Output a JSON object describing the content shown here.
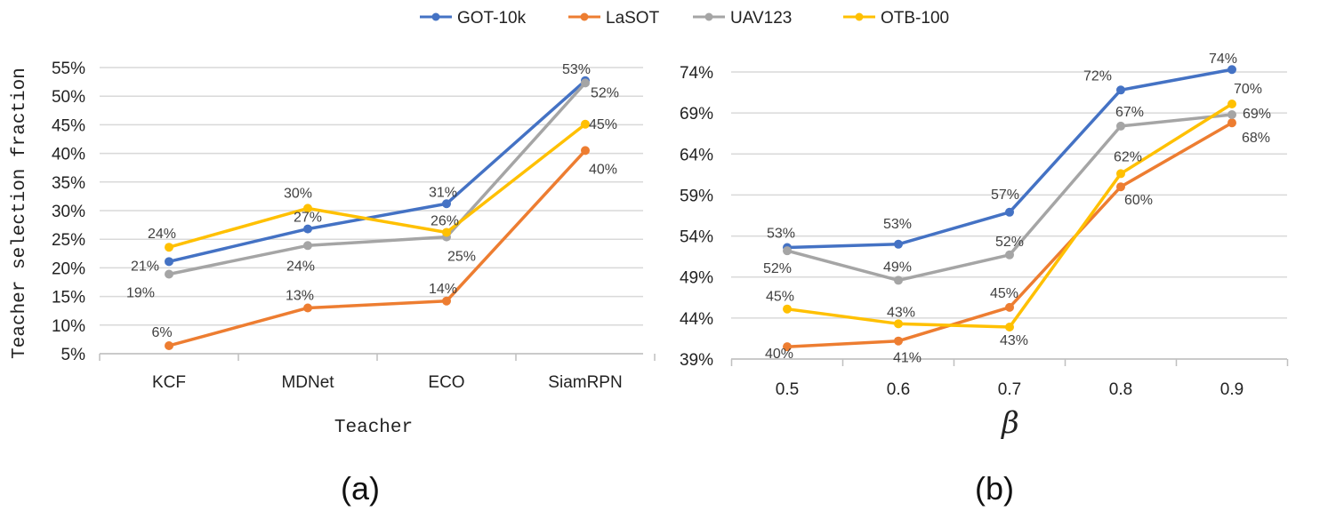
{
  "legend": [
    {
      "name": "GOT-10k",
      "color": "#4472C4"
    },
    {
      "name": "LaSOT",
      "color": "#ED7D31"
    },
    {
      "name": "UAV123",
      "color": "#A5A5A5"
    },
    {
      "name": "OTB-100",
      "color": "#FFC000"
    }
  ],
  "chart_data": [
    {
      "type": "line",
      "caption": "(a)",
      "xlabel": "Teacher",
      "ylabel": "Teacher selection fraction",
      "categories": [
        "KCF",
        "MDNet",
        "ECO",
        "SiamRPN"
      ],
      "ylim": [
        5,
        55
      ],
      "yticks": [
        5,
        10,
        15,
        20,
        25,
        30,
        35,
        40,
        45,
        50,
        55
      ],
      "ytick_labels": [
        "5%",
        "10%",
        "15%",
        "20%",
        "25%",
        "30%",
        "35%",
        "40%",
        "45%",
        "50%",
        "55%"
      ],
      "grid": true,
      "series": [
        {
          "name": "GOT-10k",
          "color": "#4472C4",
          "values": [
            21.1,
            26.8,
            31.2,
            52.7
          ],
          "labels": [
            "21%",
            "27%",
            "31%",
            "53%"
          ]
        },
        {
          "name": "LaSOT",
          "color": "#ED7D31",
          "values": [
            6.4,
            13.0,
            14.2,
            40.5
          ],
          "labels": [
            "6%",
            "13%",
            "14%",
            "40%"
          ]
        },
        {
          "name": "UAV123",
          "color": "#A5A5A5",
          "values": [
            18.9,
            23.9,
            25.4,
            52.3
          ],
          "labels": [
            "19%",
            "24%",
            "25%",
            "52%"
          ]
        },
        {
          "name": "OTB-100",
          "color": "#FFC000",
          "values": [
            23.6,
            30.4,
            26.2,
            45.1
          ],
          "labels": [
            "24%",
            "30%",
            "26%",
            "45%"
          ]
        }
      ]
    },
    {
      "type": "line",
      "caption": "(b)",
      "xlabel": "β",
      "ylabel": "",
      "categories": [
        "0.5",
        "0.6",
        "0.7",
        "0.8",
        "0.9"
      ],
      "ylim": [
        39,
        74
      ],
      "yticks": [
        39,
        44,
        49,
        54,
        59,
        64,
        69,
        74
      ],
      "ytick_labels": [
        "39%",
        "44%",
        "49%",
        "54%",
        "59%",
        "64%",
        "69%",
        "74%"
      ],
      "grid": true,
      "series": [
        {
          "name": "GOT-10k",
          "color": "#4472C4",
          "values": [
            52.6,
            53.0,
            56.9,
            71.8,
            74.3
          ],
          "labels": [
            "53%",
            "53%",
            "57%",
            "72%",
            "74%"
          ]
        },
        {
          "name": "LaSOT",
          "color": "#ED7D31",
          "values": [
            40.5,
            41.2,
            45.3,
            60.0,
            67.8
          ],
          "labels": [
            "40%",
            "41%",
            "45%",
            "60%",
            "68%"
          ]
        },
        {
          "name": "UAV123",
          "color": "#A5A5A5",
          "values": [
            52.2,
            48.6,
            51.7,
            67.4,
            68.8
          ],
          "labels": [
            "52%",
            "49%",
            "52%",
            "67%",
            "69%"
          ]
        },
        {
          "name": "OTB-100",
          "color": "#FFC000",
          "values": [
            45.1,
            43.3,
            42.9,
            61.6,
            70.1
          ],
          "labels": [
            "45%",
            "43%",
            "43%",
            "62%",
            "70%"
          ]
        }
      ]
    }
  ]
}
